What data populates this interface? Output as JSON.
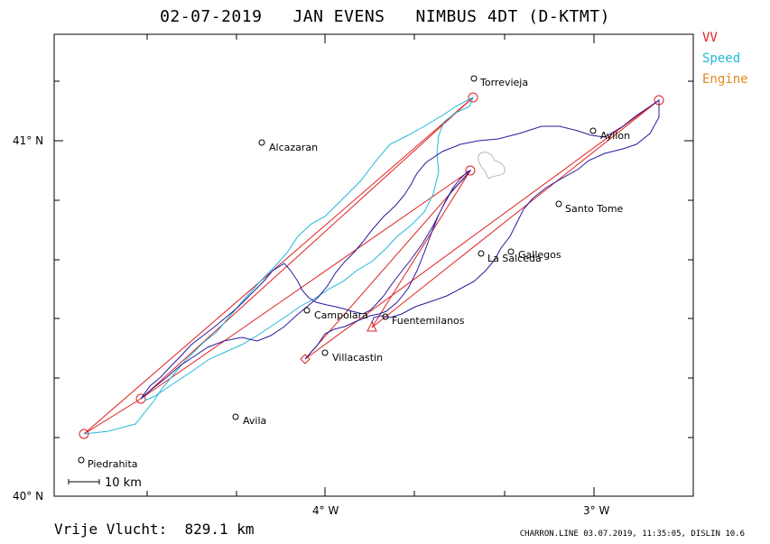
{
  "title": "02-07-2019   JAN EVENS   NIMBUS 4DT (D-KTMT)",
  "legend": [
    {
      "label": "VV",
      "color": "#e02020"
    },
    {
      "label": "Speed",
      "color": "#22b8d8"
    },
    {
      "label": "Engine",
      "color": "#e08a1e"
    }
  ],
  "axis": {
    "lat_labels": [
      "41° N",
      "40° N"
    ],
    "lon_labels": [
      "4° W",
      "3° W"
    ]
  },
  "scale": {
    "label": "10 km"
  },
  "places": [
    {
      "name": "Torrevieja"
    },
    {
      "name": "Alcazaran"
    },
    {
      "name": "Ayllon"
    },
    {
      "name": "Santo Tome"
    },
    {
      "name": "Gallegos"
    },
    {
      "name": "La Salceda"
    },
    {
      "name": "Campolara"
    },
    {
      "name": "Fuentemilanos"
    },
    {
      "name": "Villacastin"
    },
    {
      "name": "Avila"
    },
    {
      "name": "Piedrahita"
    }
  ],
  "footer": {
    "distance_label": "Vrije Vlucht:",
    "distance_value": "829.1 km",
    "credits": "CHARRON.LINE 03.07.2019, 11:35:05, DISLIN 10.6"
  },
  "colors": {
    "task": "#e02020",
    "track": "#2a1a9a",
    "speed": "#22b8d8",
    "lake": "#b8b8b8"
  }
}
